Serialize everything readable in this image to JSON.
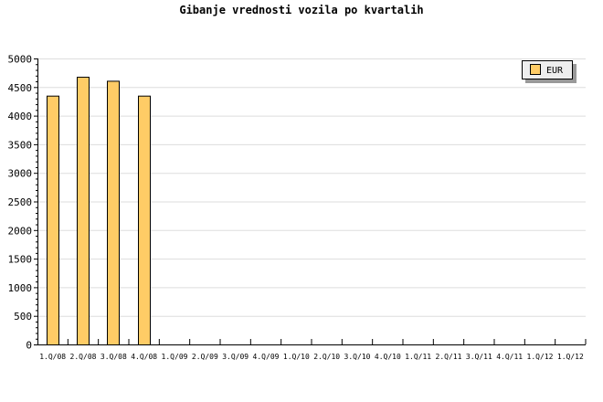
{
  "chart_data": {
    "type": "bar",
    "title": "Gibanje vrednosti vozila po kvartalih",
    "categories": [
      "1.Q/08",
      "2.Q/08",
      "3.Q/08",
      "4.Q/08",
      "1.Q/09",
      "2.Q/09",
      "3.Q/09",
      "4.Q/09",
      "1.Q/10",
      "2.Q/10",
      "3.Q/10",
      "4.Q/10",
      "1.Q/11",
      "2.Q/11",
      "3.Q/11",
      "4.Q/11",
      "1.Q/12",
      "1.Q/12"
    ],
    "series": [
      {
        "name": "EUR",
        "values": [
          4350,
          4680,
          4610,
          4350,
          null,
          null,
          null,
          null,
          null,
          null,
          null,
          null,
          null,
          null,
          null,
          null,
          null,
          null
        ]
      }
    ],
    "ylim": [
      0,
      5000
    ],
    "yticks": [
      0,
      500,
      1000,
      1500,
      2000,
      2500,
      3000,
      3500,
      4000,
      4500,
      5000
    ],
    "grid": true,
    "legend": "top-right",
    "colors": {
      "bar": "#ffcc66",
      "grid": "#dddddd"
    }
  }
}
